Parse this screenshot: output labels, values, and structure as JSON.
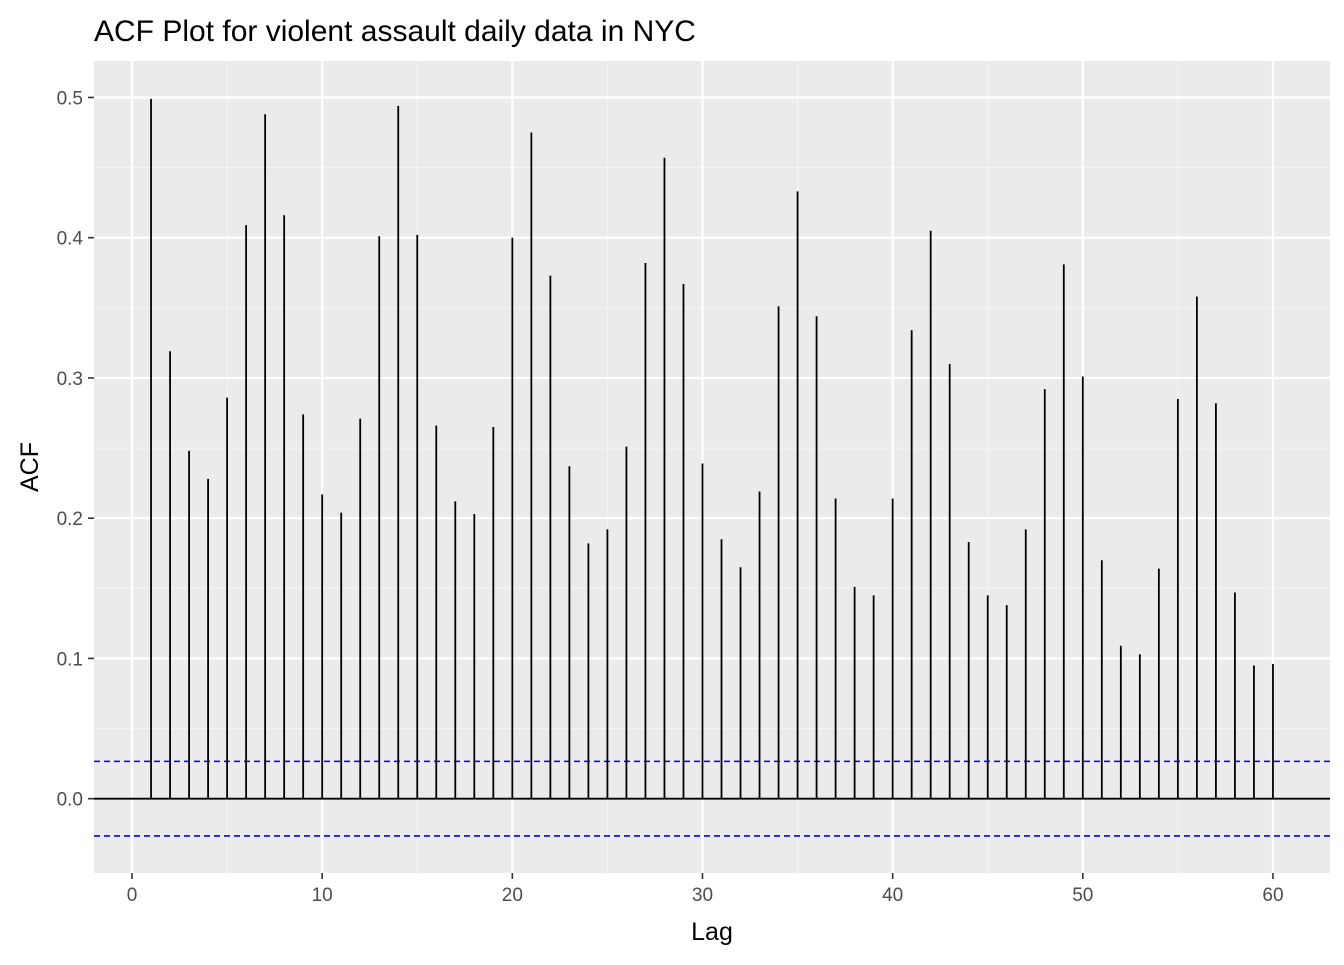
{
  "chart_data": {
    "type": "bar",
    "subtype": "acf-stem",
    "title": "ACF Plot for violent assault daily data in NYC",
    "xlabel": "Lag",
    "ylabel": "ACF",
    "xlim": [
      -2,
      63
    ],
    "ylim": [
      -0.053,
      0.526
    ],
    "x_ticks": [
      0,
      10,
      20,
      30,
      40,
      50,
      60
    ],
    "x_tick_labels": [
      "0",
      "10",
      "20",
      "30",
      "40",
      "50",
      "60"
    ],
    "y_ticks": [
      0.0,
      0.1,
      0.2,
      0.3,
      0.4,
      0.5
    ],
    "y_tick_labels": [
      "0.0",
      "0.1",
      "0.2",
      "0.3",
      "0.4",
      "0.5"
    ],
    "grid": true,
    "lags": [
      1,
      2,
      3,
      4,
      5,
      6,
      7,
      8,
      9,
      10,
      11,
      12,
      13,
      14,
      15,
      16,
      17,
      18,
      19,
      20,
      21,
      22,
      23,
      24,
      25,
      26,
      27,
      28,
      29,
      30,
      31,
      32,
      33,
      34,
      35,
      36,
      37,
      38,
      39,
      40,
      41,
      42,
      43,
      44,
      45,
      46,
      47,
      48,
      49,
      50,
      51,
      52,
      53,
      54,
      55,
      56,
      57,
      58,
      59,
      60
    ],
    "values": [
      0.499,
      0.319,
      0.248,
      0.228,
      0.286,
      0.409,
      0.488,
      0.416,
      0.274,
      0.217,
      0.204,
      0.271,
      0.401,
      0.494,
      0.402,
      0.266,
      0.212,
      0.203,
      0.265,
      0.4,
      0.475,
      0.373,
      0.237,
      0.182,
      0.192,
      0.251,
      0.382,
      0.457,
      0.367,
      0.239,
      0.185,
      0.165,
      0.219,
      0.351,
      0.433,
      0.344,
      0.214,
      0.151,
      0.145,
      0.214,
      0.334,
      0.405,
      0.31,
      0.183,
      0.145,
      0.138,
      0.192,
      0.292,
      0.381,
      0.301,
      0.17,
      0.109,
      0.103,
      0.164,
      0.285,
      0.358,
      0.282,
      0.147,
      0.095,
      0.096
    ],
    "confidence_bound": 0.0266,
    "colors": {
      "panel_background": "#EBEBEB",
      "grid_major": "#FFFFFF",
      "grid_minor": "#F5F5F5",
      "stem": "#000000",
      "zero_line": "#000000",
      "confidence_line": "#0000FF"
    }
  }
}
